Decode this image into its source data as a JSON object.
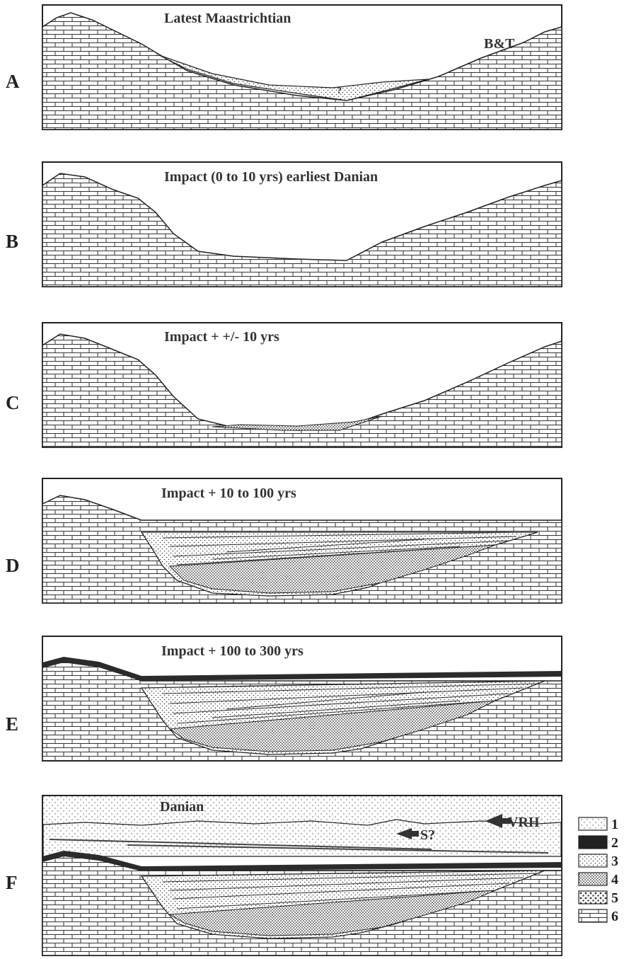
{
  "panels": [
    {
      "letter": "A",
      "title": "Latest Maastrichtian"
    },
    {
      "letter": "B",
      "title": "Impact (0 to 10 yrs) earliest Danian"
    },
    {
      "letter": "C",
      "title": "Impact + +/- 10 yrs"
    },
    {
      "letter": "D",
      "title": "Impact + 10 to 100 yrs"
    },
    {
      "letter": "E",
      "title": "Impact + 100 to 300 yrs"
    },
    {
      "letter": "F",
      "title": "Danian"
    }
  ],
  "labels": {
    "bt": "B&T",
    "vrh": "VRH",
    "s": "S?",
    "question": "?"
  },
  "legend": [
    {
      "num": "1",
      "pattern": "sparse-dots"
    },
    {
      "num": "2",
      "pattern": "solid-black"
    },
    {
      "num": "3",
      "pattern": "dots"
    },
    {
      "num": "4",
      "pattern": "dense-dots"
    },
    {
      "num": "5",
      "pattern": "coarse-dots"
    },
    {
      "num": "6",
      "pattern": "limestone-brick"
    }
  ],
  "colors": {
    "ink": "#222222",
    "layer2": "#2b2b2b",
    "paper": "#ffffff"
  }
}
